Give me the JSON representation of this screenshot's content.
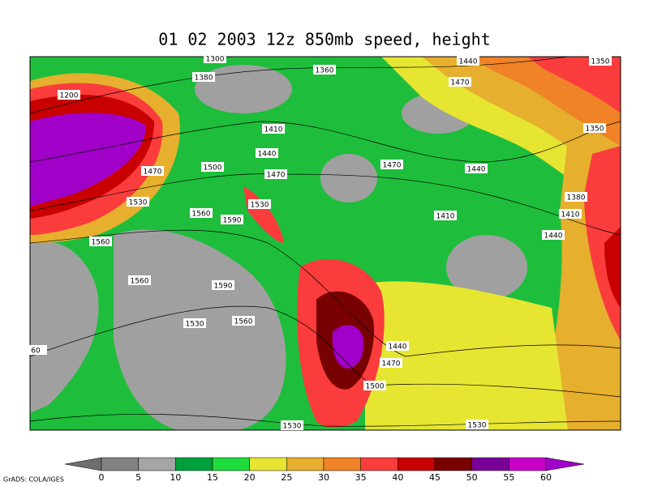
{
  "title": "01 02 2003 12z 850mb speed, height",
  "contour_labels": [
    "1300",
    "1380",
    "1360",
    "1440",
    "1350",
    "1200",
    "1470",
    "1410",
    "1350",
    "1440",
    "1500",
    "1470",
    "1470",
    "1470",
    "1440",
    "1530",
    "1530",
    "1560",
    "1590",
    "1380",
    "1410",
    "1410",
    "1560",
    "1440",
    "1560",
    "1590",
    "1530",
    "1560",
    "1440",
    "1470",
    "1500",
    "1530",
    "1530",
    "60"
  ],
  "colorbar": {
    "levels": [
      0,
      5,
      10,
      15,
      20,
      25,
      30,
      35,
      40,
      45,
      50,
      55,
      60
    ],
    "colors": [
      "#6e6e6e",
      "#828282",
      "#a5a5a5",
      "#00a03c",
      "#1edc3c",
      "#e6e632",
      "#e6af2d",
      "#f08228",
      "#fa3c3c",
      "#c80000",
      "#780000",
      "#780096",
      "#c800c8",
      "#a000c8"
    ]
  },
  "credit": "GrADS: COLA/IGES"
}
